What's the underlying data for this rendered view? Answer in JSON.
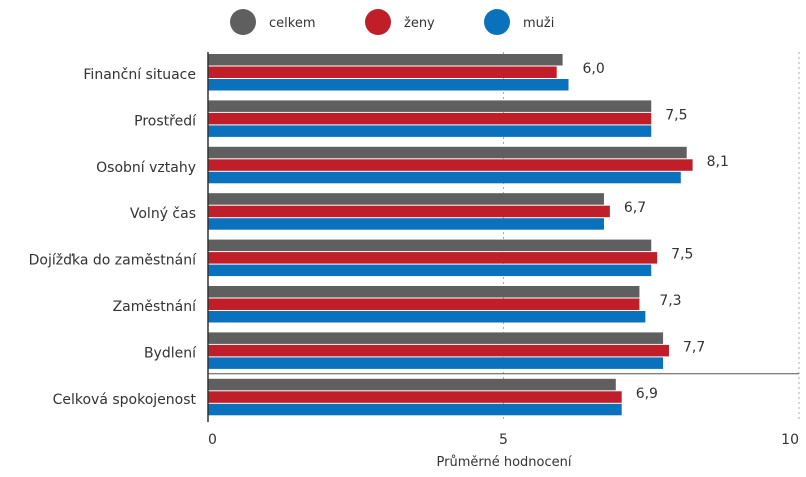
{
  "chart_data": {
    "type": "bar",
    "orientation": "horizontal",
    "title": "",
    "xlabel": "Průměrné hodnocení",
    "ylabel": "",
    "xlim": [
      0,
      10
    ],
    "xticks": [
      0,
      5,
      10
    ],
    "legend_position": "top",
    "grid": "vertical dashed",
    "categories": [
      "Finanční situace",
      "Prostředí",
      "Osobní vztahy",
      "Volný čas",
      "Dojížďka do zaměstnání",
      "Zaměstnání",
      "Bydlení",
      "Celková spokojenost"
    ],
    "series": [
      {
        "name": "celkem",
        "color": "#5f5f5f",
        "values": [
          6.0,
          7.5,
          8.1,
          6.7,
          7.5,
          7.3,
          7.7,
          6.9
        ]
      },
      {
        "name": "ženy",
        "color": "#c01f2a",
        "values": [
          5.9,
          7.5,
          8.2,
          6.8,
          7.6,
          7.3,
          7.8,
          7.0
        ]
      },
      {
        "name": "muži",
        "color": "#0a72bd",
        "values": [
          6.1,
          7.5,
          8.0,
          6.7,
          7.5,
          7.4,
          7.7,
          7.0
        ]
      }
    ],
    "data_labels": [
      "6,0",
      "7,5",
      "8,1",
      "6,7",
      "7,5",
      "7,3",
      "7,7",
      "6,9"
    ]
  }
}
